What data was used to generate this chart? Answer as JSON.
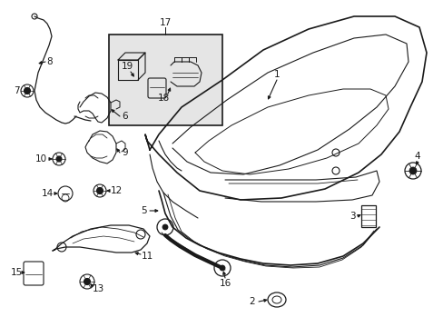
{
  "bg_color": "#ffffff",
  "lc": "#1a1a1a",
  "fill_inset": "#e8e8e8",
  "figsize": [
    4.89,
    3.6
  ],
  "dpi": 100,
  "xlim": [
    0,
    489
  ],
  "ylim": [
    0,
    360
  ]
}
